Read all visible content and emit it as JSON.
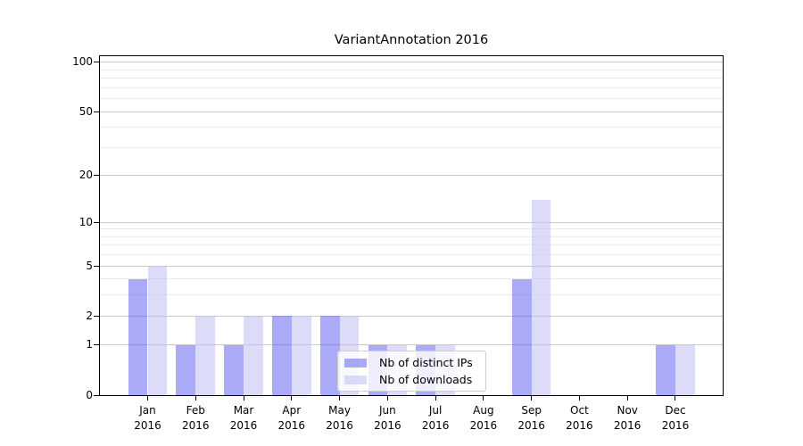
{
  "chart_data": {
    "type": "bar",
    "title": "VariantAnnotation 2016",
    "categories": [
      {
        "month": "Jan",
        "year": "2016"
      },
      {
        "month": "Feb",
        "year": "2016"
      },
      {
        "month": "Mar",
        "year": "2016"
      },
      {
        "month": "Apr",
        "year": "2016"
      },
      {
        "month": "May",
        "year": "2016"
      },
      {
        "month": "Jun",
        "year": "2016"
      },
      {
        "month": "Jul",
        "year": "2016"
      },
      {
        "month": "Aug",
        "year": "2016"
      },
      {
        "month": "Sep",
        "year": "2016"
      },
      {
        "month": "Oct",
        "year": "2016"
      },
      {
        "month": "Nov",
        "year": "2016"
      },
      {
        "month": "Dec",
        "year": "2016"
      }
    ],
    "series": [
      {
        "name": "Nb of distinct IPs",
        "color": "#6464f2",
        "alpha": 0.55,
        "values": [
          4,
          1,
          1,
          2,
          2,
          1,
          1,
          0,
          4,
          0,
          0,
          1
        ]
      },
      {
        "name": "Nb of downloads",
        "color": "#bfbff2",
        "alpha": 0.55,
        "values": [
          5,
          2,
          2,
          2,
          2,
          1,
          1,
          0,
          14,
          0,
          0,
          1
        ]
      }
    ],
    "y_axis": {
      "scale": "log1p",
      "ticks": [
        0,
        1,
        2,
        5,
        10,
        20,
        50,
        100
      ],
      "minor_gridlines": [
        3,
        4,
        6,
        7,
        8,
        9,
        30,
        40,
        60,
        70,
        80,
        90
      ],
      "ylim": [
        0,
        109
      ]
    },
    "grid": {
      "major_color": "#c9c9c9",
      "minor_color": "#ebebeb",
      "on": true
    },
    "legend": {
      "items": [
        "Nb of distinct IPs",
        "Nb of downloads"
      ],
      "position": "lower center"
    },
    "background": "#ffffff",
    "spine_color": "#000000"
  }
}
